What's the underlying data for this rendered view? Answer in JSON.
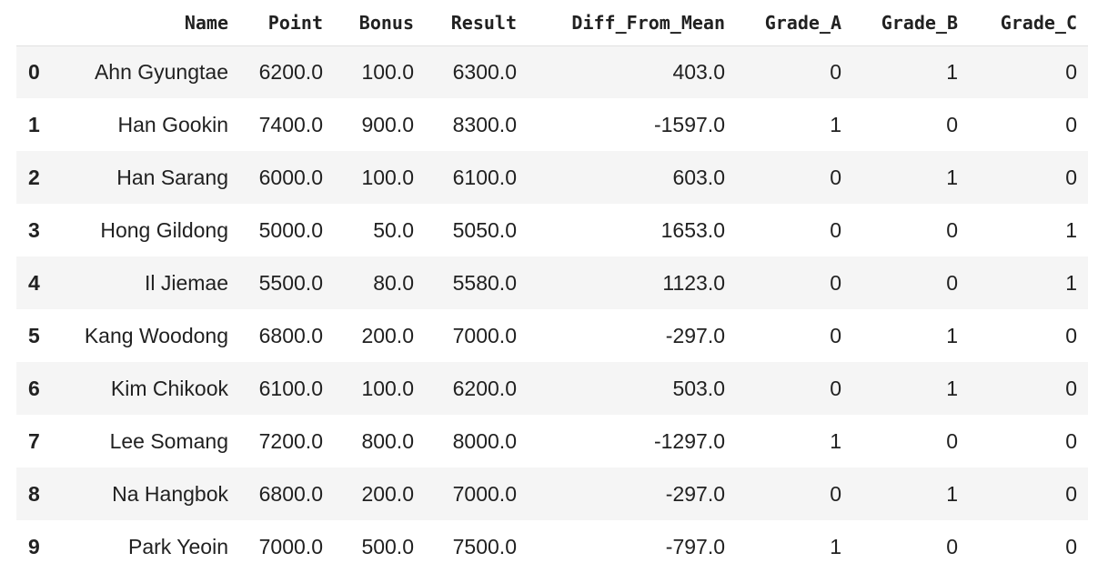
{
  "table": {
    "columns": [
      "",
      "Name",
      "Point",
      "Bonus",
      "Result",
      "Diff_From_Mean",
      "Grade_A",
      "Grade_B",
      "Grade_C"
    ],
    "rows": [
      {
        "index": "0",
        "Name": "Ahn Gyungtae",
        "Point": "6200.0",
        "Bonus": "100.0",
        "Result": "6300.0",
        "Diff_From_Mean": "403.0",
        "Grade_A": "0",
        "Grade_B": "1",
        "Grade_C": "0"
      },
      {
        "index": "1",
        "Name": "Han Gookin",
        "Point": "7400.0",
        "Bonus": "900.0",
        "Result": "8300.0",
        "Diff_From_Mean": "-1597.0",
        "Grade_A": "1",
        "Grade_B": "0",
        "Grade_C": "0"
      },
      {
        "index": "2",
        "Name": "Han Sarang",
        "Point": "6000.0",
        "Bonus": "100.0",
        "Result": "6100.0",
        "Diff_From_Mean": "603.0",
        "Grade_A": "0",
        "Grade_B": "1",
        "Grade_C": "0"
      },
      {
        "index": "3",
        "Name": "Hong Gildong",
        "Point": "5000.0",
        "Bonus": "50.0",
        "Result": "5050.0",
        "Diff_From_Mean": "1653.0",
        "Grade_A": "0",
        "Grade_B": "0",
        "Grade_C": "1"
      },
      {
        "index": "4",
        "Name": "Il Jiemae",
        "Point": "5500.0",
        "Bonus": "80.0",
        "Result": "5580.0",
        "Diff_From_Mean": "1123.0",
        "Grade_A": "0",
        "Grade_B": "0",
        "Grade_C": "1"
      },
      {
        "index": "5",
        "Name": "Kang Woodong",
        "Point": "6800.0",
        "Bonus": "200.0",
        "Result": "7000.0",
        "Diff_From_Mean": "-297.0",
        "Grade_A": "0",
        "Grade_B": "1",
        "Grade_C": "0"
      },
      {
        "index": "6",
        "Name": "Kim Chikook",
        "Point": "6100.0",
        "Bonus": "100.0",
        "Result": "6200.0",
        "Diff_From_Mean": "503.0",
        "Grade_A": "0",
        "Grade_B": "1",
        "Grade_C": "0"
      },
      {
        "index": "7",
        "Name": "Lee Somang",
        "Point": "7200.0",
        "Bonus": "800.0",
        "Result": "8000.0",
        "Diff_From_Mean": "-1297.0",
        "Grade_A": "1",
        "Grade_B": "0",
        "Grade_C": "0"
      },
      {
        "index": "8",
        "Name": "Na Hangbok",
        "Point": "6800.0",
        "Bonus": "200.0",
        "Result": "7000.0",
        "Diff_From_Mean": "-297.0",
        "Grade_A": "0",
        "Grade_B": "1",
        "Grade_C": "0"
      },
      {
        "index": "9",
        "Name": "Park Yeoin",
        "Point": "7000.0",
        "Bonus": "500.0",
        "Result": "7500.0",
        "Diff_From_Mean": "-797.0",
        "Grade_A": "1",
        "Grade_B": "0",
        "Grade_C": "0"
      }
    ]
  },
  "colors": {
    "stripe": "#f5f5f5",
    "text": "#212121",
    "background": "#ffffff"
  }
}
